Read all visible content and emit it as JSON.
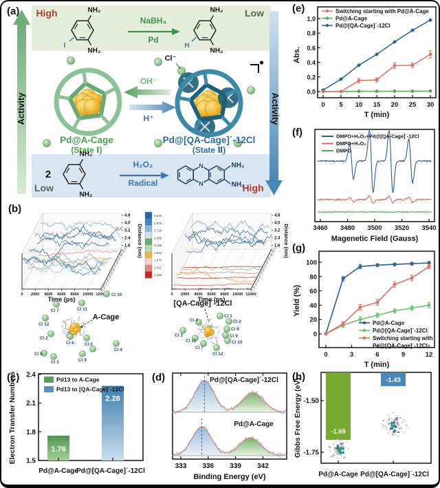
{
  "panels": {
    "a": "(a)",
    "b": "(b)",
    "c": "(c)",
    "d": "(d)",
    "e": "(e)",
    "f": "(f)",
    "g": "(g)",
    "h": "(h)"
  },
  "panel_a": {
    "high_top_left": "High",
    "low_top_right": "Low",
    "low_bottom_left": "Low",
    "high_bottom_right": "High",
    "activity_left": "Activity",
    "activity_right": "Activity",
    "top_reaction": {
      "reagent_above": "NaBH₄",
      "reagent_below": "Pd",
      "nh2": "NH₂",
      "iodine": "I",
      "hydrogen": "H"
    },
    "middle": {
      "chloride": "Cl⁻",
      "hydroxide": "OH⁻",
      "proton": "H⁺",
      "cage_green_name": "Pd@A-Cage",
      "cage_green_state": "(State Ⅰ)",
      "cage_blue_name": "Pd@[QA-Cage]˙-12Cl",
      "cage_blue_state": "(State Ⅱ)"
    },
    "bottom_reaction": {
      "coefficient": "2",
      "reagent_above": "H₂O₂",
      "reagent_below": "Radical",
      "nh2": "NH₂",
      "n": "N"
    }
  },
  "panel_b": {
    "molecule_left_label": "A-Cage",
    "molecule_right_label": "[QA-Cage]˙-12Cl",
    "cl_site_labels": [
      "Cl 1",
      "Cl 2",
      "Cl 3",
      "Cl 4",
      "Cl 5",
      "Cl 6",
      "Cl 7",
      "Cl 8",
      "Cl 9",
      "Cl 10",
      "Cl 11",
      "Cl 12"
    ],
    "colorbar_ticks": [
      "3.240",
      "2.979",
      "2.718",
      "2.456",
      "2.195",
      "1.934",
      "1.673",
      "1.411",
      "1.150"
    ],
    "colorbar_colors": [
      "#2565a3",
      "#4584ba",
      "#8cb8d8",
      "#cfdfeb",
      "#63ad74",
      "#b5d9ae",
      "#e6b54c",
      "#ecd5cb",
      "#d88a80",
      "#c9271a"
    ]
  },
  "chart_data": [
    {
      "id": "b_left",
      "type": "line",
      "title": "A-Cage",
      "xlabel": "Time (ps)",
      "xticks": [
        0,
        2000,
        4000,
        6000,
        8000,
        10000,
        12000
      ],
      "zlabel": "Distance (nm)",
      "zticks": [
        1.6,
        2.4,
        3.2,
        4.0,
        4.8
      ],
      "series_labels": [
        "Cl 1",
        "Cl 2",
        "Cl 3",
        "Cl 4",
        "Cl 5",
        "Cl 6",
        "Cl 7",
        "Cl 8",
        "Cl 9",
        "Cl 10",
        "Cl 11",
        "Cl 12"
      ],
      "distance_range_nm": [
        1.2,
        4.8
      ],
      "note": "MD traces: most chloride distances fluctuate 2-4.8 nm (unbound)"
    },
    {
      "id": "b_right",
      "type": "line",
      "title": "[QA-Cage]˙-12Cl",
      "xlabel": "Time (ps)",
      "xticks": [
        0,
        2000,
        4000,
        6000,
        8000,
        10000,
        12000
      ],
      "zlabel": "Distance (nm)",
      "zticks": [
        1.6,
        2.4,
        3.2,
        4.0,
        4.8
      ],
      "series_labels": [
        "Cl 1",
        "Cl 2",
        "Cl 3",
        "Cl 4",
        "Cl 5",
        "Cl 6",
        "Cl 7",
        "Cl 8",
        "Cl 9",
        "Cl 10",
        "Cl 11",
        "Cl 12"
      ],
      "distance_range_nm": [
        1.15,
        4.8
      ],
      "note": "MD traces: most chloride distances collapse to ~1.15 nm (bound)"
    },
    {
      "id": "c",
      "type": "bar",
      "ylabel": "Electron Transfer Numbers",
      "yticks": [
        1.5,
        1.8,
        2.1,
        2.4
      ],
      "ylim": [
        1.5,
        2.45
      ],
      "categories": [
        "Pd@A-Cage",
        "Pd@[QA-Cage]˙-12Cl"
      ],
      "values": [
        1.76,
        2.28
      ],
      "value_labels": [
        "1.76",
        "2.28"
      ],
      "legend": [
        "Pd13 to A-Cage",
        "Pd13 to [QA-Cage]˙-12Cl"
      ],
      "colors": {
        "green_top": "#4e9350",
        "green_bottom": "#a6d096",
        "blue_top": "#3f7fae",
        "blue_bottom": "#cadeed"
      }
    },
    {
      "id": "d",
      "type": "area",
      "xlabel": "Binding Energy (eV)",
      "xticks": [
        333,
        336,
        339,
        342
      ],
      "xlim": [
        332.1,
        344.6
      ],
      "spectra": [
        {
          "label": "Pd@[QA-Cage]˙-12Cl",
          "peak1_center": 335.6,
          "peak2_center": 340.9
        },
        {
          "label": "Pd@A-Cage",
          "peak1_center": 335.3,
          "peak2_center": 340.6
        }
      ]
    },
    {
      "id": "e",
      "type": "line",
      "xlabel": "T (min)",
      "ylabel": "Abs.",
      "x": [
        0,
        5,
        10,
        15,
        20,
        25,
        30
      ],
      "xticks": [
        0,
        5,
        10,
        15,
        20,
        25,
        30
      ],
      "yticks": [
        "0.0",
        "0.2",
        "0.4",
        "0.6",
        "0.8",
        "1.0"
      ],
      "ylim": [
        -0.05,
        1.05
      ],
      "series": [
        {
          "name": "Switching starting with Pd@A-Cage",
          "color": "#dd7268",
          "values": [
            0,
            0,
            0.15,
            0.16,
            0.355,
            0.36,
            0.51
          ],
          "errors": [
            0,
            0,
            0.03,
            0.03,
            0.04,
            0.03,
            0.05
          ]
        },
        {
          "name": "Pd@A-Cage",
          "color": "#55a357",
          "values": [
            0,
            0,
            0.004,
            0.004,
            0.005,
            0.005,
            0.006
          ],
          "errors": [
            0,
            0,
            0,
            0,
            0,
            0,
            0
          ]
        },
        {
          "name": "Pd@[QA-Cage]˙-12Cl",
          "color": "#2b5d8e",
          "values": [
            0.02,
            0.17,
            0.36,
            0.51,
            0.68,
            0.84,
            0.98
          ],
          "errors": [
            0,
            0,
            0,
            0,
            0,
            0,
            0
          ]
        }
      ]
    },
    {
      "id": "f",
      "type": "line",
      "xlabel": "Magenetic Field (Gauss)",
      "xticks": [
        3460,
        3480,
        3500,
        3520,
        3540
      ],
      "xlim": [
        3455,
        3545
      ],
      "series": [
        {
          "name": "DMPO+H₂O₂+Pd@[QA-Cage]˙-12Cl",
          "color": "#2b5d8e",
          "peak_centers": [
            3483,
            3497.5,
            3512,
            3526.5
          ],
          "peak_amps": [
            26,
            46,
            46,
            32
          ]
        },
        {
          "name": "DMPO+H₂O₂",
          "color": "#d96b5f",
          "peak_centers": [
            3483,
            3497.5,
            3512,
            3526.5
          ],
          "peak_amps": [
            3,
            5,
            5,
            4
          ]
        },
        {
          "name": "DMPO",
          "color": "#55a357",
          "peak_centers": [],
          "peak_amps": []
        }
      ]
    },
    {
      "id": "g",
      "type": "line",
      "xlabel": "T (min)",
      "ylabel": "Yield (%)",
      "x": [
        0,
        2,
        4,
        6,
        8,
        10,
        12
      ],
      "xticks": [
        0,
        3,
        6,
        9,
        12
      ],
      "yticks": [
        0,
        20,
        40,
        60,
        80,
        100
      ],
      "series": [
        {
          "name": "Pd@A-Cage",
          "color": "#2b5d8e",
          "values": [
            0,
            77,
            94,
            96,
            97,
            98,
            99
          ],
          "errors": [
            0,
            3,
            3,
            2,
            2,
            2,
            2
          ],
          "legend_lines": [
            "Pd@A-Cage"
          ]
        },
        {
          "name": "Pd@[QA-Cage]˙-12Cl",
          "color": "#6fbf73",
          "values": [
            0,
            12,
            20,
            26,
            32,
            36,
            40
          ],
          "errors": [
            0,
            3,
            4,
            3,
            3,
            3,
            4
          ],
          "legend_lines": [
            "Pd@[QA-Cage]˙-12Cl"
          ]
        },
        {
          "name": "Switching starting with Pd@[QA-Cage]˙-12Cl",
          "color": "#dd7268",
          "values": [
            0,
            14,
            37,
            44,
            69,
            78,
            94
          ],
          "errors": [
            0,
            3,
            4,
            4,
            4,
            4,
            3
          ],
          "legend_lines": [
            "Switching starting with",
            "Pd@[QA-Cage]˙-12Cl"
          ]
        }
      ]
    },
    {
      "id": "h",
      "type": "bar",
      "ylabel": "Gibbs Free Energy (eV)",
      "yticks": [
        "-1.50",
        "-1.75"
      ],
      "categories": [
        "Pd@A-Cage",
        "Pd@[QA-Cage]˙-12Cl"
      ],
      "values": [
        -1.69,
        -1.43
      ],
      "value_labels": [
        "-1.69",
        "-1.43"
      ],
      "colors": {
        "green": "#76a832",
        "blue": "#4d87b5"
      }
    }
  ]
}
